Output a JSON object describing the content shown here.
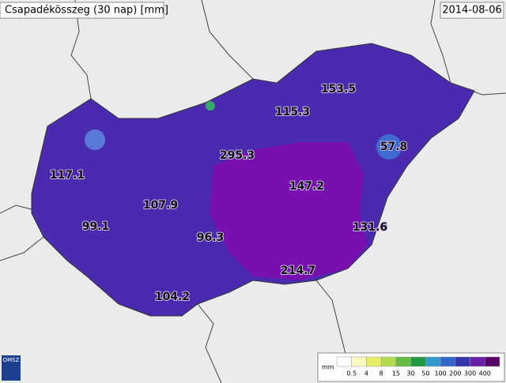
{
  "header": {
    "title": "Csapadékösszeg (30 nap) [mm]",
    "date": "2014-08-06"
  },
  "values": [
    "117.1",
    "295.3",
    "115.3",
    "153.5",
    "57.8",
    "147.2",
    "107.9",
    "99.1",
    "96.3",
    "131.6",
    "214.7",
    "104.2"
  ],
  "legend": {
    "unit": "mm",
    "labels": [
      "0.5",
      "4",
      "8",
      "15",
      "30",
      "50",
      "100",
      "200",
      "300",
      "400"
    ],
    "colors": [
      "#ffffff",
      "#fafac0",
      "#e6ee66",
      "#b4dc50",
      "#66bb44",
      "#229944",
      "#3399cc",
      "#3366cc",
      "#3333aa",
      "#6a1fa8",
      "#550066"
    ]
  },
  "logo": "OMSZ"
}
